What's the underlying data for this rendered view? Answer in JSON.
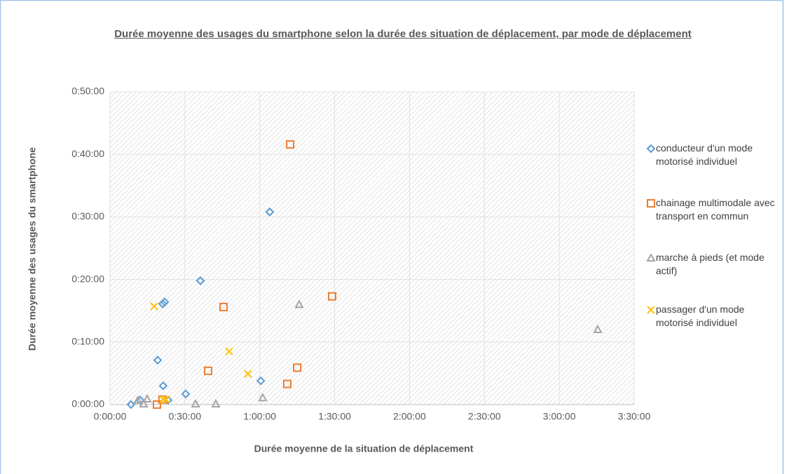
{
  "chart_data": {
    "type": "scatter",
    "title": "Durée moyenne des usages du smartphone selon la durée des situation de déplacement, par mode de déplacement",
    "x_label": "Durée moyenne de la situation de déplacement",
    "y_label": "Durée moyenne des usages du smartphone",
    "xlim": [
      0,
      210
    ],
    "ylim": [
      0,
      50
    ],
    "xticks": [
      {
        "value": 0,
        "label": "0:00:00"
      },
      {
        "value": 30,
        "label": "0:30:00"
      },
      {
        "value": 60,
        "label": "1:00:00"
      },
      {
        "value": 90,
        "label": "1:30:00"
      },
      {
        "value": 120,
        "label": "2:00:00"
      },
      {
        "value": 150,
        "label": "2:30:00"
      },
      {
        "value": 180,
        "label": "3:00:00"
      },
      {
        "value": 210,
        "label": "3:30:00"
      }
    ],
    "yticks": [
      {
        "value": 0,
        "label": "0:00:00"
      },
      {
        "value": 10,
        "label": "0:10:00"
      },
      {
        "value": 20,
        "label": "0:20:00"
      },
      {
        "value": 30,
        "label": "0:30:00"
      },
      {
        "value": 40,
        "label": "0:40:00"
      },
      {
        "value": 50,
        "label": "0:50:00"
      }
    ],
    "grid": true,
    "legend": "right",
    "series": [
      {
        "name": "conducteur d'un mode motorisé individuel",
        "color": "#5b9bd5",
        "marker": "diamond",
        "x": [
          8.4,
          12.1,
          19.1,
          21.1,
          21.9,
          21.3,
          23.3,
          30.3,
          36.2,
          64.0,
          60.4
        ],
        "values": [
          0,
          0.7,
          7.1,
          16.1,
          16.4,
          3.0,
          0.7,
          1.7,
          19.8,
          30.8,
          3.8
        ]
      },
      {
        "name": "chainage multimodale avec transport en commun",
        "color": "#ed7d31",
        "marker": "square",
        "x": [
          72.2,
          89.0,
          45.5,
          39.3,
          75.0,
          71.0,
          18.8,
          21.0
        ],
        "values": [
          41.6,
          17.3,
          15.6,
          5.4,
          5.9,
          3.3,
          0,
          0.8
        ]
      },
      {
        "name": "marche à pieds (et mode actif)",
        "color": "#a5a5a5",
        "marker": "triangle",
        "x": [
          75.8,
          195.4,
          61.2,
          34.3,
          42.4,
          13.5,
          14.9,
          11.2
        ],
        "values": [
          16.0,
          12.0,
          1.1,
          0.1,
          0.1,
          0.1,
          0.9,
          0.7
        ]
      },
      {
        "name": "passager d'un mode motorisé individuel",
        "color": "#ffc000",
        "marker": "x",
        "x": [
          17.7,
          47.7,
          55.3,
          21.3,
          22.5
        ],
        "values": [
          15.7,
          8.5,
          4.9,
          0.8,
          0.8
        ]
      }
    ]
  }
}
